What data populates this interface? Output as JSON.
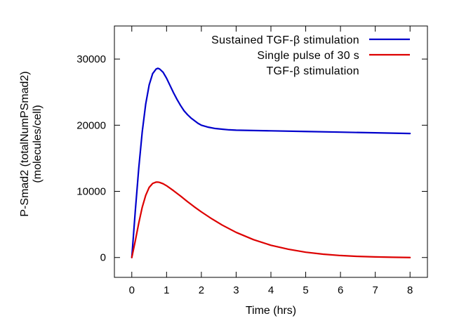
{
  "chart_data": {
    "type": "line",
    "xlabel": "Time (hrs)",
    "ylabel": [
      "P-Smad2 (totalNumPSmad2)",
      "(molecules/cell)"
    ],
    "xlim": [
      -0.5,
      8.5
    ],
    "ylim": [
      -3000,
      35000
    ],
    "xticks": [
      0,
      1,
      2,
      3,
      4,
      5,
      6,
      7,
      8
    ],
    "yticks": [
      0,
      10000,
      20000,
      30000
    ],
    "grid": false,
    "legend_position": "top-right",
    "series": [
      {
        "name": "Sustained TGF-β stimulation",
        "color": "#0000cc",
        "x": [
          0,
          0.1,
          0.2,
          0.3,
          0.4,
          0.5,
          0.6,
          0.7,
          0.75,
          0.8,
          0.9,
          1.0,
          1.1,
          1.2,
          1.3,
          1.4,
          1.5,
          1.6,
          1.7,
          1.8,
          1.9,
          2.0,
          2.2,
          2.4,
          2.6,
          2.8,
          3.0,
          3.5,
          4.0,
          5.0,
          6.0,
          7.0,
          8.0
        ],
        "values": [
          0,
          7000,
          13500,
          19000,
          23200,
          26100,
          27800,
          28500,
          28600,
          28500,
          28000,
          27100,
          26000,
          24900,
          23900,
          23000,
          22200,
          21600,
          21100,
          20700,
          20300,
          20000,
          19700,
          19500,
          19400,
          19300,
          19250,
          19200,
          19150,
          19050,
          18950,
          18850,
          18750
        ]
      },
      {
        "name": "Single pulse of 30 s\nTGF-β stimulation",
        "label_lines": [
          "Single pulse of 30 s",
          "TGF-β stimulation"
        ],
        "color": "#dd0000",
        "x": [
          0,
          0.1,
          0.2,
          0.3,
          0.4,
          0.5,
          0.6,
          0.7,
          0.75,
          0.8,
          0.9,
          1.0,
          1.2,
          1.4,
          1.6,
          1.8,
          2.0,
          2.3,
          2.6,
          3.0,
          3.5,
          4.0,
          4.5,
          5.0,
          5.5,
          6.0,
          6.5,
          7.0,
          7.5,
          8.0
        ],
        "values": [
          0,
          2500,
          5200,
          7600,
          9400,
          10600,
          11200,
          11400,
          11400,
          11350,
          11150,
          10850,
          10100,
          9300,
          8450,
          7650,
          6900,
          5850,
          4900,
          3800,
          2700,
          1850,
          1250,
          800,
          500,
          300,
          170,
          90,
          40,
          0
        ]
      }
    ]
  }
}
